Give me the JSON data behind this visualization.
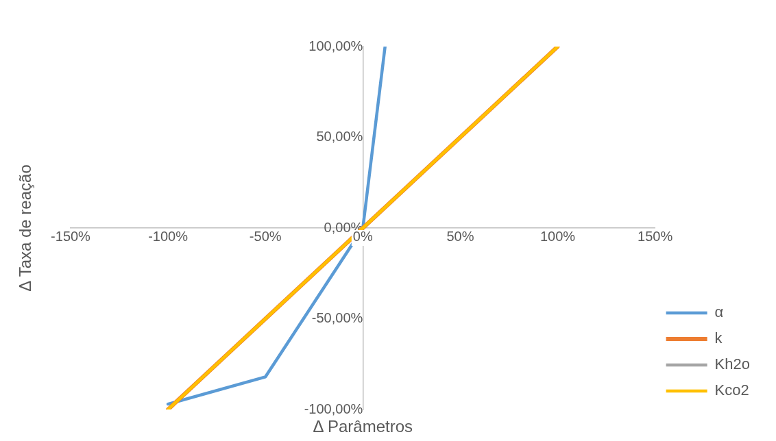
{
  "chart_data": {
    "type": "line",
    "xlabel": "Δ Parâmetros",
    "ylabel": "Δ Taxa de reação",
    "series": [
      {
        "name": "α",
        "color": "#5b9bd5",
        "x": [
          -100,
          -50,
          0,
          11.4
        ],
        "values": [
          -97,
          -82,
          0,
          100
        ]
      },
      {
        "name": "k",
        "color": "#ed7d31",
        "x": [
          -100,
          -50,
          0,
          50,
          100
        ],
        "values": [
          -100,
          -50,
          0,
          50,
          100
        ]
      },
      {
        "name": "Kh2o",
        "color": "#a5a5a5"
      },
      {
        "name": "Kco2",
        "color": "#ffc000",
        "x": [
          -100,
          -50,
          0,
          50,
          100
        ],
        "values": [
          -100,
          -50,
          0,
          50,
          100
        ]
      }
    ],
    "xlim": [
      -150,
      150
    ],
    "xticks": [
      {
        "value": -150,
        "label": "-150%"
      },
      {
        "value": -100,
        "label": "-100%"
      },
      {
        "value": -50,
        "label": "-50%"
      },
      {
        "value": 0,
        "label": "0%"
      },
      {
        "value": 50,
        "label": "50%"
      },
      {
        "value": 100,
        "label": "100%"
      },
      {
        "value": 150,
        "label": "150%"
      }
    ],
    "ylim": [
      -100,
      100
    ],
    "yticks": [
      {
        "value": -100,
        "label": "-100,00%"
      },
      {
        "value": -50,
        "label": "-50,00%"
      },
      {
        "value": 0,
        "label": "0,00%"
      },
      {
        "value": 50,
        "label": "50,00%"
      },
      {
        "value": 100,
        "label": "100,00%"
      }
    ],
    "grid": false,
    "legend": "bottom right",
    "marker": "none",
    "line_style": "solid"
  }
}
